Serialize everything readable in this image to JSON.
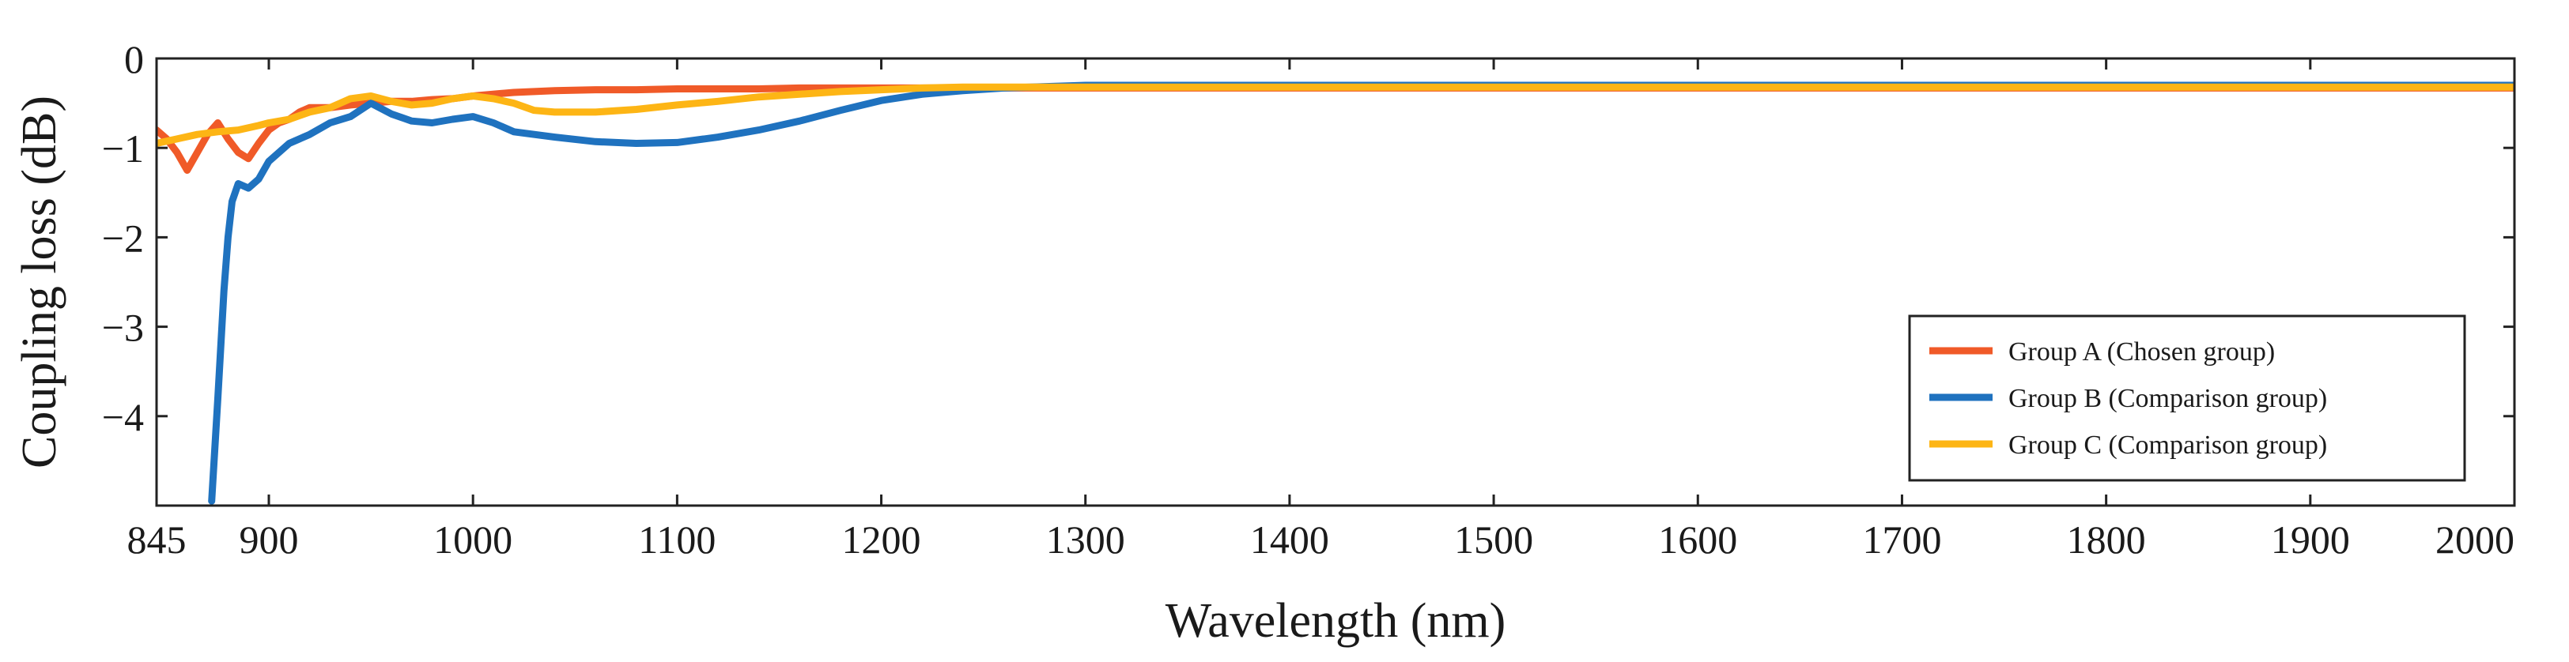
{
  "chart_data": {
    "type": "line",
    "title": "",
    "xlabel": "Wavelength (nm)",
    "ylabel": "Coupling loss (dB)",
    "xlim": [
      845,
      2000
    ],
    "ylim": [
      -5,
      0
    ],
    "x_ticks": [
      845,
      900,
      1000,
      1100,
      1200,
      1300,
      1400,
      1500,
      1600,
      1700,
      1800,
      1900,
      2000
    ],
    "x_tick_labels": [
      "845",
      "900",
      "1000",
      "1100",
      "1200",
      "1300",
      "1400",
      "1500",
      "1600",
      "1700",
      "1800",
      "1900",
      "2000"
    ],
    "y_ticks": [
      0,
      -1,
      -2,
      -3,
      -4
    ],
    "y_tick_labels": [
      "0",
      "−1",
      "−2",
      "−3",
      "−4"
    ],
    "grid": false,
    "legend_position": "lower-right",
    "series": [
      {
        "name": "Group A (Chosen group)",
        "color": "#f05a28",
        "x": [
          845,
          850,
          855,
          860,
          865,
          870,
          875,
          880,
          885,
          890,
          895,
          900,
          905,
          910,
          915,
          920,
          930,
          940,
          950,
          960,
          970,
          980,
          990,
          1000,
          1020,
          1040,
          1060,
          1080,
          1100,
          1120,
          1140,
          1160,
          1180,
          1200,
          1230,
          1260,
          1300,
          1400,
          1500,
          1600,
          1700,
          1800,
          1900,
          2000
        ],
        "y": [
          -0.8,
          -0.9,
          -1.05,
          -1.25,
          -1.05,
          -0.85,
          -0.72,
          -0.9,
          -1.05,
          -1.12,
          -0.95,
          -0.8,
          -0.72,
          -0.68,
          -0.6,
          -0.55,
          -0.55,
          -0.52,
          -0.5,
          -0.48,
          -0.48,
          -0.46,
          -0.45,
          -0.42,
          -0.38,
          -0.36,
          -0.35,
          -0.35,
          -0.34,
          -0.34,
          -0.34,
          -0.33,
          -0.33,
          -0.33,
          -0.33,
          -0.33,
          -0.33,
          -0.33,
          -0.33,
          -0.33,
          -0.33,
          -0.33,
          -0.33,
          -0.33
        ]
      },
      {
        "name": "Group B (Comparison group)",
        "color": "#1f72bf",
        "x": [
          872,
          875,
          878,
          880,
          882,
          885,
          890,
          895,
          900,
          905,
          910,
          920,
          930,
          940,
          950,
          960,
          970,
          980,
          990,
          1000,
          1010,
          1020,
          1030,
          1040,
          1060,
          1080,
          1100,
          1120,
          1140,
          1160,
          1180,
          1200,
          1220,
          1240,
          1260,
          1300,
          1400,
          1500,
          1600,
          1700,
          1800,
          1900,
          2000
        ],
        "y": [
          -4.95,
          -3.8,
          -2.6,
          -2.0,
          -1.6,
          -1.4,
          -1.45,
          -1.35,
          -1.15,
          -1.05,
          -0.95,
          -0.85,
          -0.72,
          -0.65,
          -0.5,
          -0.62,
          -0.7,
          -0.72,
          -0.68,
          -0.65,
          -0.72,
          -0.82,
          -0.85,
          -0.88,
          -0.93,
          -0.95,
          -0.94,
          -0.88,
          -0.8,
          -0.7,
          -0.58,
          -0.47,
          -0.4,
          -0.36,
          -0.33,
          -0.3,
          -0.3,
          -0.3,
          -0.3,
          -0.3,
          -0.3,
          -0.3,
          -0.3
        ]
      },
      {
        "name": "Group C (Comparison group)",
        "color": "#fdb515",
        "x": [
          845,
          855,
          865,
          875,
          885,
          895,
          900,
          910,
          920,
          930,
          940,
          950,
          960,
          970,
          980,
          990,
          1000,
          1010,
          1020,
          1030,
          1040,
          1060,
          1080,
          1100,
          1120,
          1140,
          1160,
          1180,
          1200,
          1220,
          1240,
          1260,
          1300,
          1400,
          1500,
          1600,
          1700,
          1800,
          1900,
          2000
        ],
        "y": [
          -0.95,
          -0.9,
          -0.85,
          -0.82,
          -0.8,
          -0.75,
          -0.72,
          -0.68,
          -0.6,
          -0.55,
          -0.45,
          -0.42,
          -0.48,
          -0.52,
          -0.5,
          -0.45,
          -0.42,
          -0.45,
          -0.5,
          -0.58,
          -0.6,
          -0.6,
          -0.57,
          -0.52,
          -0.48,
          -0.43,
          -0.4,
          -0.37,
          -0.35,
          -0.33,
          -0.32,
          -0.32,
          -0.32,
          -0.32,
          -0.32,
          -0.32,
          -0.32,
          -0.32,
          -0.32,
          -0.32
        ]
      }
    ]
  }
}
